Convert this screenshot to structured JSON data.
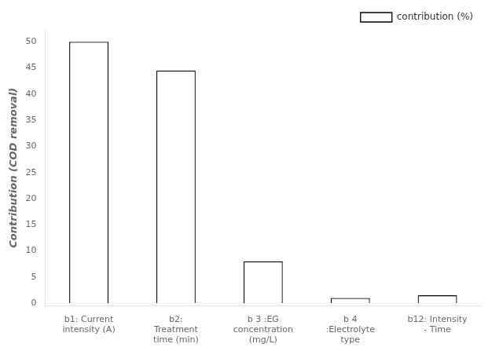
{
  "chart_data": {
    "type": "bar",
    "categories": [
      "b1: Current\nintensity (A)",
      "b2:\nTreatment\ntime (min)",
      "b 3 :EG\nconcentration\n(mg/L)",
      "b 4\n:Electrolyte\ntype",
      "b12: Intensity\n- Time"
    ],
    "series": [
      {
        "name": "contribution (%)",
        "color": "#ffffff",
        "values": [
          50,
          44.5,
          8,
          1.0,
          1.5
        ]
      }
    ],
    "ylabel": "Contribution (COD removal)",
    "ylim": [
      -0.5,
      52.3
    ],
    "yticks": [
      0,
      5,
      10,
      15,
      20,
      25,
      30,
      35,
      40,
      45,
      50
    ],
    "grid": false,
    "legend": "upper right"
  }
}
